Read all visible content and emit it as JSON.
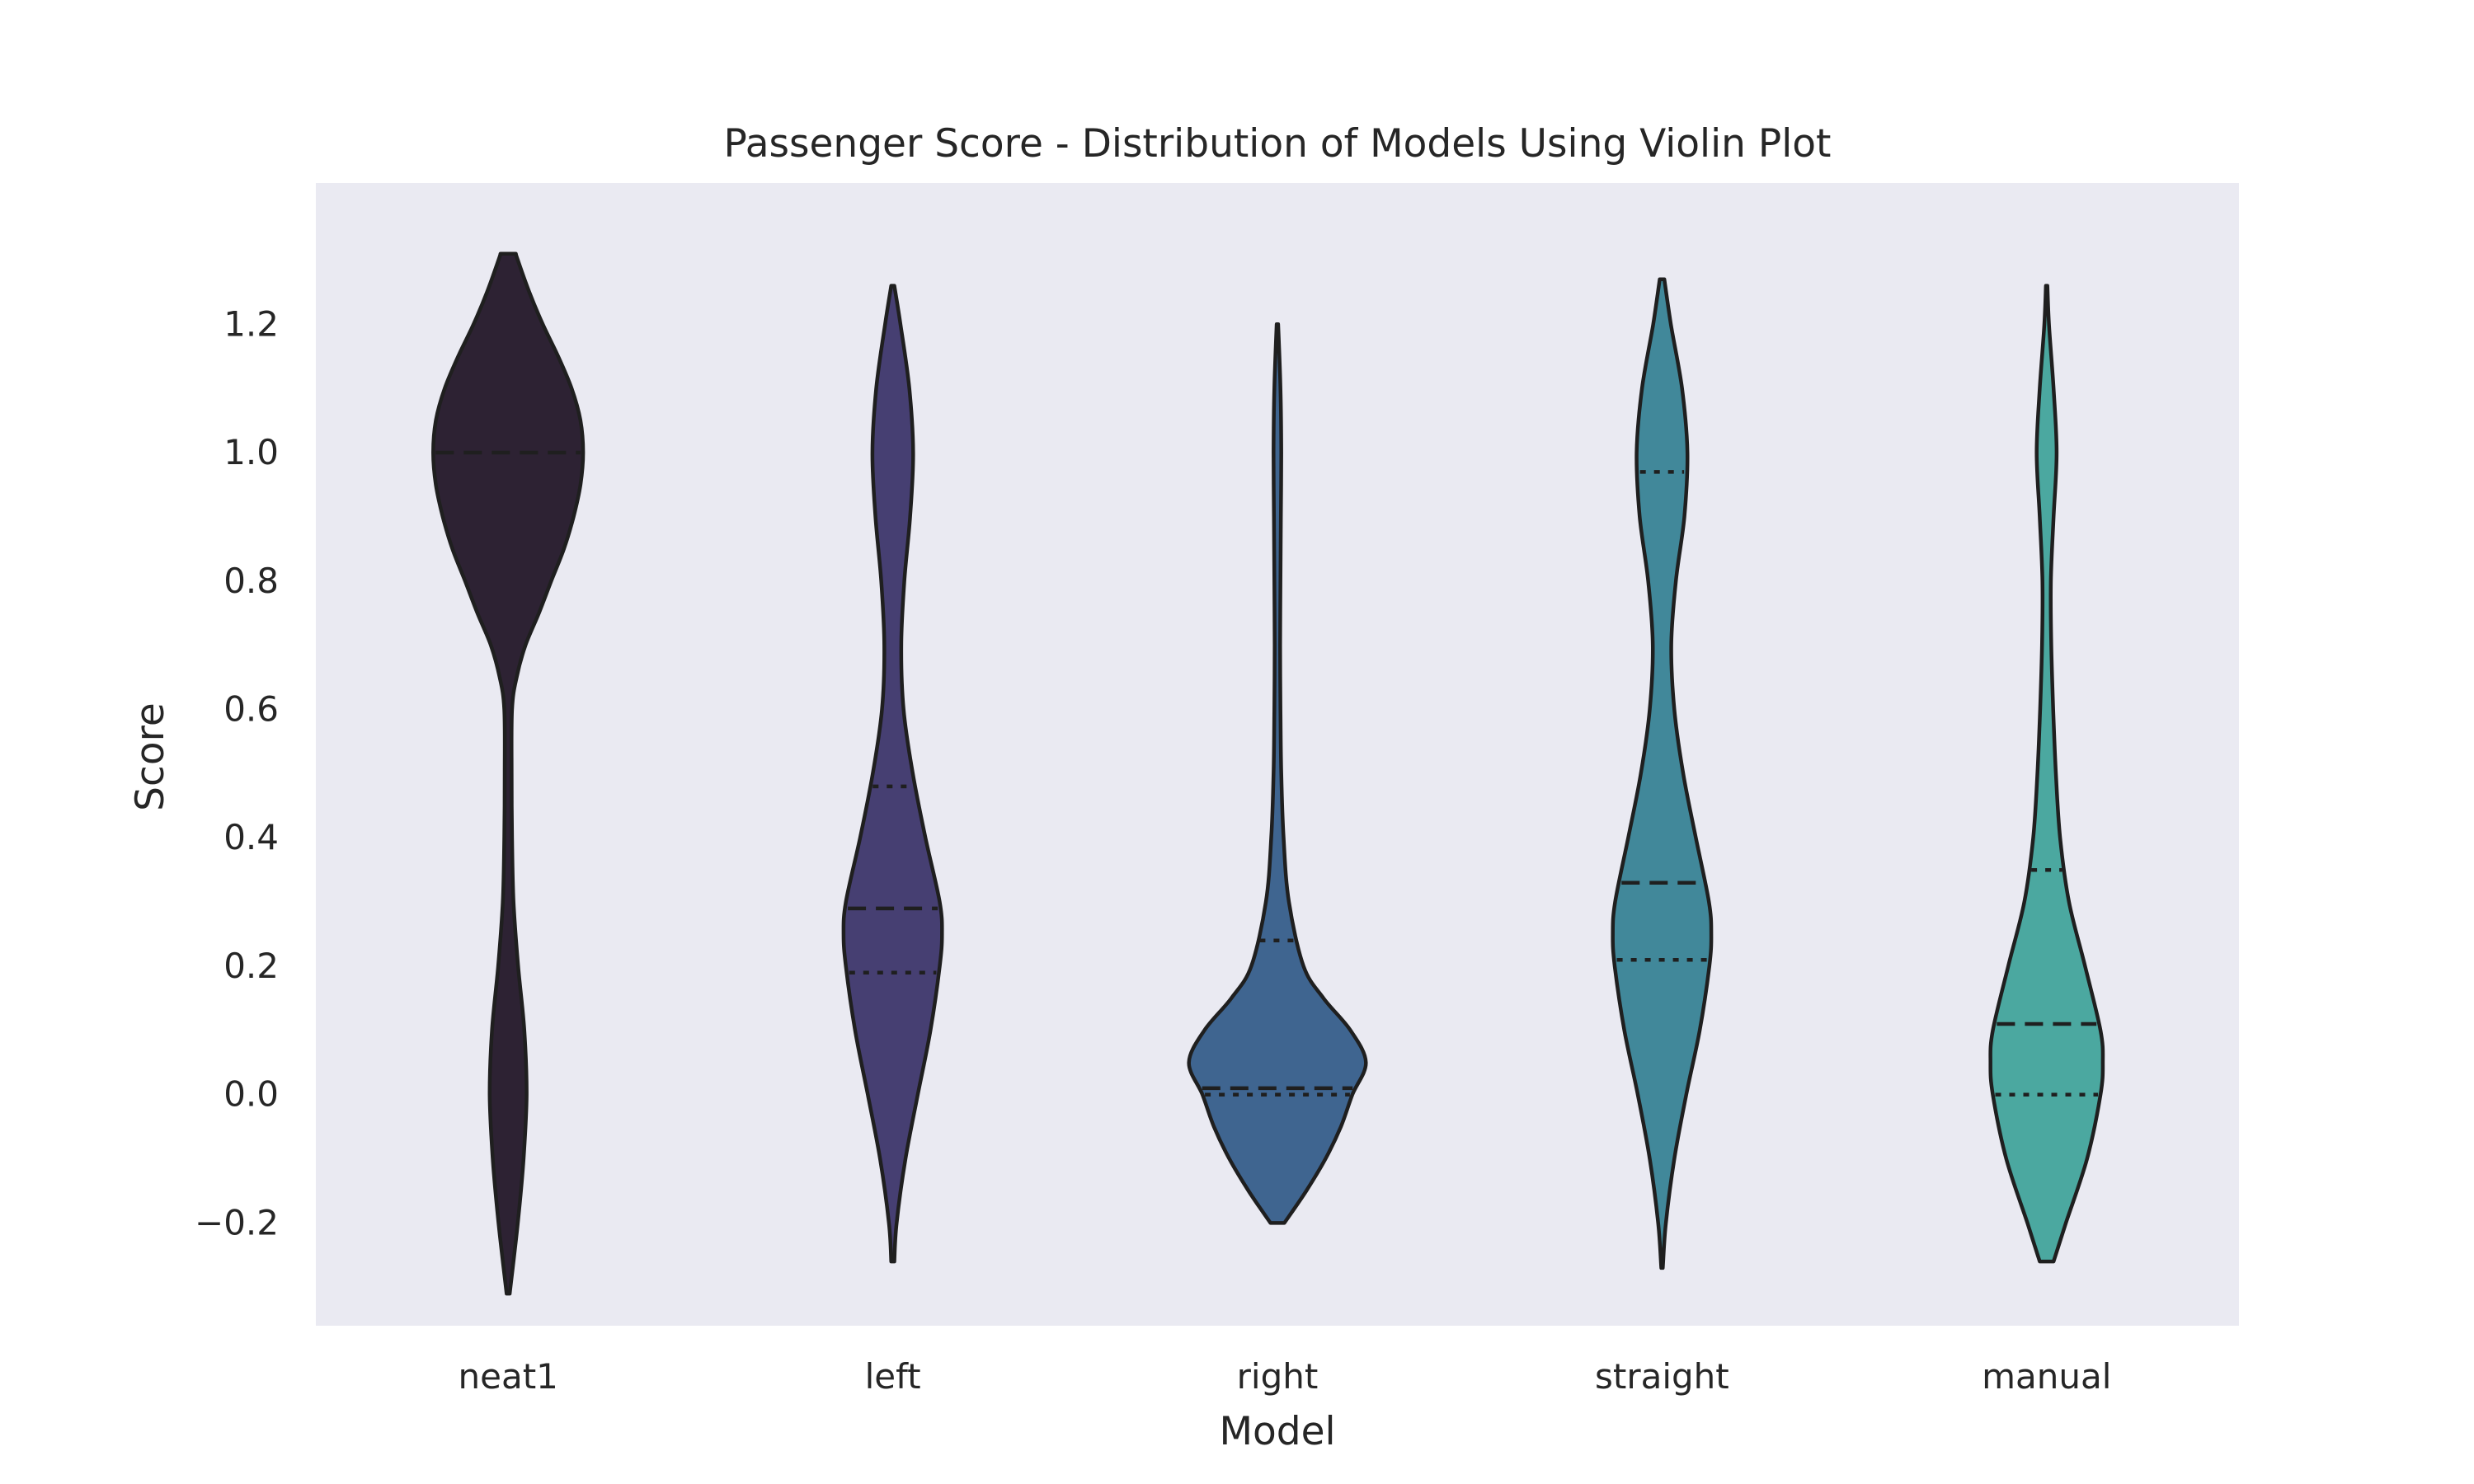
{
  "chart_data": {
    "type": "violin",
    "title": "Passenger Score - Distribution of Models Using Violin Plot",
    "xlabel": "Model",
    "ylabel": "Score",
    "ylim": [
      -0.36,
      1.42
    ],
    "yticks": [
      -0.2,
      0.0,
      0.2,
      0.4,
      0.6,
      0.8,
      1.0,
      1.2
    ],
    "ytick_labels": [
      "−0.2",
      "0.0",
      "0.2",
      "0.4",
      "0.6",
      "0.8",
      "1.0",
      "1.2"
    ],
    "grid": false,
    "background": "#eaeaf2",
    "categories": [
      "neat1",
      "left",
      "right",
      "straight",
      "manual"
    ],
    "colors": [
      "#2d2233",
      "#463f72",
      "#3f6590",
      "#41889a",
      "#4ba8a0"
    ],
    "violins": [
      {
        "name": "neat1",
        "y_min": -0.31,
        "y_max": 1.31,
        "median": 1.0,
        "quartiles": [],
        "profile": [
          [
            -0.31,
            0.004
          ],
          [
            -0.2,
            0.025
          ],
          [
            -0.1,
            0.04
          ],
          [
            0.0,
            0.048
          ],
          [
            0.1,
            0.042
          ],
          [
            0.2,
            0.026
          ],
          [
            0.3,
            0.014
          ],
          [
            0.4,
            0.01
          ],
          [
            0.5,
            0.009
          ],
          [
            0.6,
            0.01
          ],
          [
            0.65,
            0.022
          ],
          [
            0.7,
            0.045
          ],
          [
            0.75,
            0.08
          ],
          [
            0.8,
            0.112
          ],
          [
            0.85,
            0.145
          ],
          [
            0.9,
            0.17
          ],
          [
            0.95,
            0.188
          ],
          [
            1.0,
            0.195
          ],
          [
            1.05,
            0.188
          ],
          [
            1.1,
            0.165
          ],
          [
            1.15,
            0.13
          ],
          [
            1.2,
            0.09
          ],
          [
            1.25,
            0.055
          ],
          [
            1.3,
            0.025
          ],
          [
            1.31,
            0.02
          ]
        ]
      },
      {
        "name": "left",
        "y_min": -0.26,
        "y_max": 1.26,
        "median": 0.29,
        "quartiles": [
          0.19,
          0.48
        ],
        "profile": [
          [
            -0.26,
            0.004
          ],
          [
            -0.2,
            0.01
          ],
          [
            -0.1,
            0.033
          ],
          [
            0.0,
            0.065
          ],
          [
            0.1,
            0.098
          ],
          [
            0.2,
            0.122
          ],
          [
            0.25,
            0.128
          ],
          [
            0.3,
            0.122
          ],
          [
            0.4,
            0.085
          ],
          [
            0.5,
            0.052
          ],
          [
            0.6,
            0.028
          ],
          [
            0.7,
            0.022
          ],
          [
            0.8,
            0.03
          ],
          [
            0.9,
            0.045
          ],
          [
            1.0,
            0.053
          ],
          [
            1.1,
            0.043
          ],
          [
            1.2,
            0.02
          ],
          [
            1.26,
            0.004
          ]
        ]
      },
      {
        "name": "right",
        "y_min": -0.2,
        "y_max": 1.2,
        "median": 0.01,
        "quartiles": [
          0.0,
          0.24
        ],
        "profile": [
          [
            -0.2,
            0.018
          ],
          [
            -0.15,
            0.075
          ],
          [
            -0.1,
            0.125
          ],
          [
            -0.05,
            0.165
          ],
          [
            0.0,
            0.195
          ],
          [
            0.05,
            0.23
          ],
          [
            0.1,
            0.19
          ],
          [
            0.15,
            0.12
          ],
          [
            0.2,
            0.068
          ],
          [
            0.3,
            0.03
          ],
          [
            0.4,
            0.016
          ],
          [
            0.5,
            0.01
          ],
          [
            0.6,
            0.008
          ],
          [
            0.7,
            0.007
          ],
          [
            0.8,
            0.008
          ],
          [
            0.9,
            0.009
          ],
          [
            1.0,
            0.01
          ],
          [
            1.1,
            0.008
          ],
          [
            1.2,
            0.002
          ]
        ]
      },
      {
        "name": "straight",
        "y_min": -0.27,
        "y_max": 1.27,
        "median": 0.33,
        "quartiles": [
          0.21,
          0.97
        ],
        "profile": [
          [
            -0.27,
            0.002
          ],
          [
            -0.2,
            0.01
          ],
          [
            -0.1,
            0.032
          ],
          [
            0.0,
            0.063
          ],
          [
            0.1,
            0.098
          ],
          [
            0.2,
            0.123
          ],
          [
            0.25,
            0.128
          ],
          [
            0.3,
            0.122
          ],
          [
            0.4,
            0.088
          ],
          [
            0.5,
            0.055
          ],
          [
            0.6,
            0.032
          ],
          [
            0.7,
            0.024
          ],
          [
            0.8,
            0.036
          ],
          [
            0.9,
            0.058
          ],
          [
            1.0,
            0.066
          ],
          [
            1.1,
            0.052
          ],
          [
            1.2,
            0.023
          ],
          [
            1.27,
            0.006
          ]
        ]
      },
      {
        "name": "manual",
        "y_min": -0.26,
        "y_max": 1.26,
        "median": 0.11,
        "quartiles": [
          0.0,
          0.35
        ],
        "profile": [
          [
            -0.26,
            0.018
          ],
          [
            -0.2,
            0.05
          ],
          [
            -0.1,
            0.105
          ],
          [
            0.0,
            0.14
          ],
          [
            0.05,
            0.146
          ],
          [
            0.1,
            0.14
          ],
          [
            0.2,
            0.1
          ],
          [
            0.3,
            0.058
          ],
          [
            0.4,
            0.035
          ],
          [
            0.5,
            0.024
          ],
          [
            0.6,
            0.017
          ],
          [
            0.7,
            0.012
          ],
          [
            0.8,
            0.011
          ],
          [
            0.9,
            0.018
          ],
          [
            1.0,
            0.026
          ],
          [
            1.1,
            0.018
          ],
          [
            1.2,
            0.006
          ],
          [
            1.26,
            0.002
          ]
        ]
      }
    ]
  }
}
